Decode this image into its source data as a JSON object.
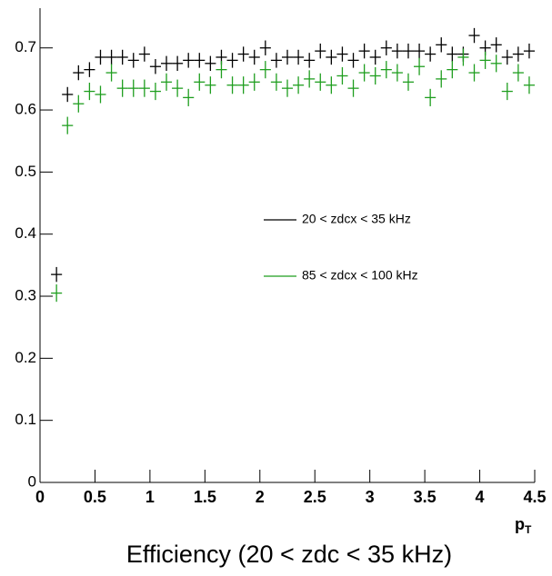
{
  "chart_data": {
    "type": "errorbar",
    "title": "Efficiency (20 < zdc < 35 kHz)",
    "xlabel": "p",
    "xlabel_sub": "T",
    "x": [
      0.15,
      0.25,
      0.35,
      0.45,
      0.55,
      0.65,
      0.75,
      0.85,
      0.95,
      1.05,
      1.15,
      1.25,
      1.35,
      1.45,
      1.55,
      1.65,
      1.75,
      1.85,
      1.95,
      2.05,
      2.15,
      2.25,
      2.35,
      2.45,
      2.55,
      2.65,
      2.75,
      2.85,
      2.95,
      3.05,
      3.15,
      3.25,
      3.35,
      3.45,
      3.55,
      3.65,
      3.75,
      3.85,
      3.95,
      4.05,
      4.15,
      4.25,
      4.35,
      4.45
    ],
    "xerr": 0.05,
    "series": [
      {
        "name": "20 < zdcx < 35 kHz",
        "color": "#000000",
        "yerr": 0.012,
        "values": [
          0.335,
          0.625,
          0.66,
          0.665,
          0.685,
          0.685,
          0.685,
          0.68,
          0.69,
          0.67,
          0.675,
          0.675,
          0.68,
          0.68,
          0.675,
          0.685,
          0.68,
          0.69,
          0.685,
          0.7,
          0.68,
          0.685,
          0.685,
          0.68,
          0.695,
          0.685,
          0.69,
          0.68,
          0.695,
          0.685,
          0.7,
          0.695,
          0.695,
          0.695,
          0.69,
          0.705,
          0.69,
          0.69,
          0.72,
          0.7,
          0.705,
          0.685,
          0.69,
          0.695
        ]
      },
      {
        "name": "85 < zdcx < 100 kHz",
        "color": "#1f9e1f",
        "yerr": 0.014,
        "values": [
          0.305,
          0.575,
          0.61,
          0.63,
          0.625,
          0.66,
          0.635,
          0.635,
          0.635,
          0.63,
          0.645,
          0.635,
          0.62,
          0.645,
          0.64,
          0.665,
          0.64,
          0.64,
          0.645,
          0.665,
          0.645,
          0.635,
          0.64,
          0.65,
          0.645,
          0.64,
          0.655,
          0.635,
          0.66,
          0.655,
          0.665,
          0.66,
          0.645,
          0.67,
          0.62,
          0.65,
          0.665,
          0.685,
          0.66,
          0.68,
          0.675,
          0.63,
          0.66,
          0.64
        ]
      }
    ],
    "xlim": [
      0,
      4.5
    ],
    "ylim": [
      0,
      0.764
    ],
    "xticks": [
      0,
      0.5,
      1,
      1.5,
      2,
      2.5,
      3,
      3.5,
      4,
      4.5
    ],
    "yticks": [
      0,
      0.1,
      0.2,
      0.3,
      0.4,
      0.5,
      0.6,
      0.7
    ],
    "legend": "center-right"
  }
}
